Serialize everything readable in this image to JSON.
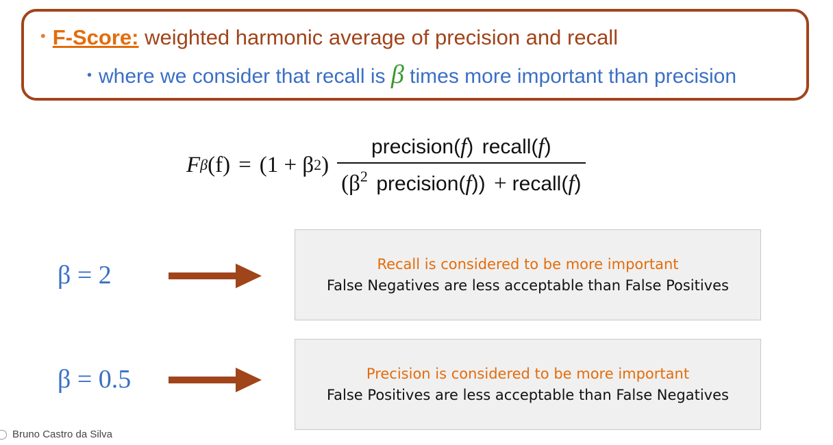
{
  "definition": {
    "term": "F-Score:",
    "description": "weighted harmonic average of precision and recall",
    "sub_prefix": "where we consider that recall is",
    "sub_symbol": "β",
    "sub_suffix": "times more important than precision"
  },
  "formula": {
    "lhs_F": "F",
    "lhs_sub": "β",
    "lhs_arg": "(f)",
    "equals": "=",
    "factor_open": "(1 + β",
    "factor_sup": "2",
    "factor_close": ")",
    "num_precision": "precision(",
    "num_f1": "f",
    "num_close1": ")",
    "num_recall": "recall(",
    "num_f2": "f",
    "num_close2": ")",
    "den_open": "(β",
    "den_sup": "2",
    "den_precision": "precision(",
    "den_f1": "f",
    "den_close1": "))",
    "den_plus": "+",
    "den_recall": "recall(",
    "den_f2": "f",
    "den_close2": ")"
  },
  "cases": [
    {
      "beta_label": "β = 2",
      "line1": "Recall is considered to be more important",
      "line2": "False Negatives are less acceptable than False Positives"
    },
    {
      "beta_label": "β = 0.5",
      "line1": "Precision is considered to be more important",
      "line2": "False Positives are less acceptable than False Negatives"
    }
  ],
  "footer": {
    "author": "Bruno Castro da Silva"
  },
  "colors": {
    "border": "#a0441a",
    "term": "#e36c0a",
    "blue": "#3a6fc4",
    "green": "#3a9a2e",
    "arrow": "#a0441a"
  }
}
